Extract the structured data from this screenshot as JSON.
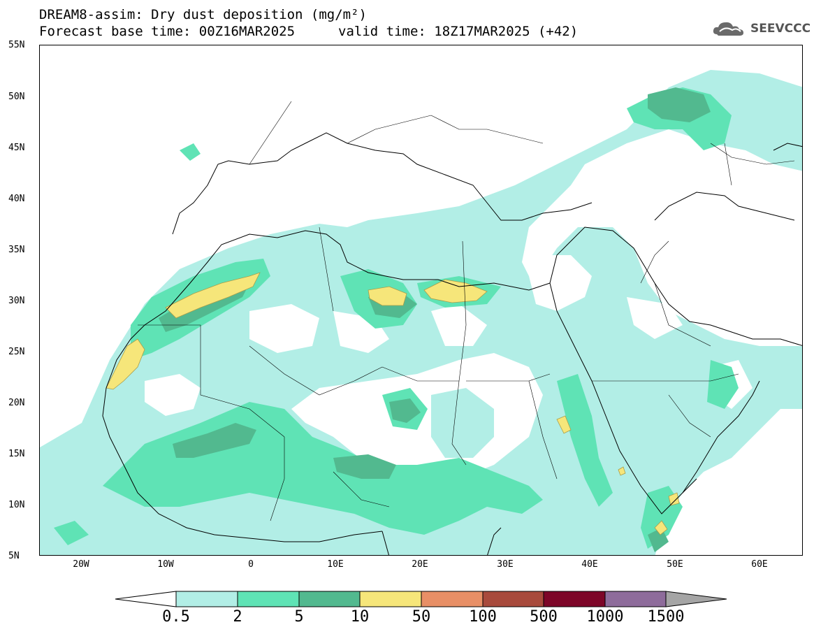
{
  "header": {
    "title_line1": "DREAM8-assim: Dry dust deposition (mg/m²)",
    "title_line2": "Forecast base time: 00Z16MAR2025",
    "valid_time": "valid time: 18Z17MAR2025 (+42)",
    "logo_text": "SEEVCCC",
    "logo_icon": "cloud-logo-icon"
  },
  "map": {
    "lat_labels": [
      "55N",
      "50N",
      "45N",
      "40N",
      "35N",
      "30N",
      "25N",
      "20N",
      "15N",
      "10N",
      "5N"
    ],
    "lon_labels": [
      "20W",
      "10W",
      "0",
      "10E",
      "20E",
      "30E",
      "40E",
      "50E",
      "60E"
    ]
  },
  "colorbar": {
    "labels": [
      "0.5",
      "2",
      "5",
      "10",
      "50",
      "100",
      "500",
      "1000",
      "1500"
    ],
    "colors": [
      "#ffffff",
      "#b2eee6",
      "#5fe3b5",
      "#52b98f",
      "#f6e67a",
      "#e88f66",
      "#a84a3c",
      "#7d0628",
      "#8e6c9b",
      "#a5a5a5"
    ]
  }
}
